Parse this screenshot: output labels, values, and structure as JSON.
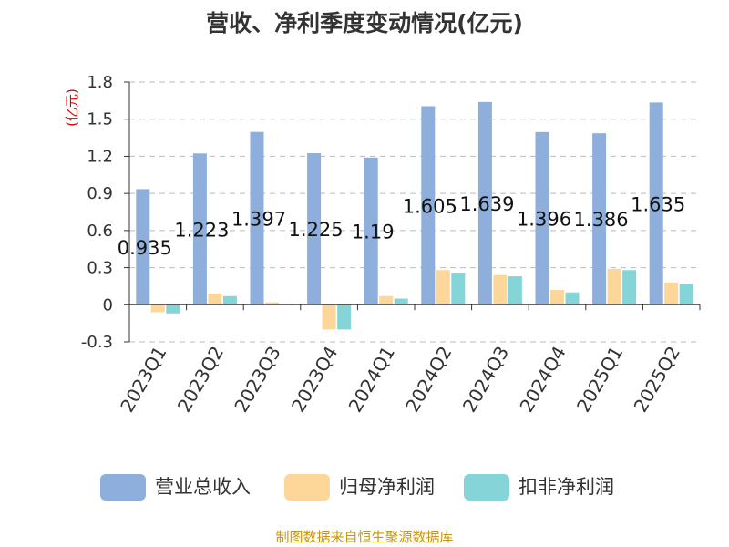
{
  "chart_data": {
    "type": "bar",
    "title": "营收、净利季度变动情况(亿元)",
    "unit_label": "(亿元)",
    "categories": [
      "2023Q1",
      "2023Q2",
      "2023Q3",
      "2023Q4",
      "2024Q1",
      "2024Q2",
      "2024Q3",
      "2024Q4",
      "2025Q1",
      "2025Q2"
    ],
    "series": [
      {
        "name": "营业总收入",
        "color": "#8eaedc",
        "values": [
          0.935,
          1.223,
          1.397,
          1.225,
          1.19,
          1.605,
          1.639,
          1.396,
          1.386,
          1.635
        ]
      },
      {
        "name": "归母净利润",
        "color": "#fdd699",
        "values": [
          -0.06,
          0.09,
          0.02,
          -0.2,
          0.07,
          0.28,
          0.24,
          0.12,
          0.29,
          0.18
        ]
      },
      {
        "name": "扣非净利润",
        "color": "#85d5d8",
        "values": [
          -0.07,
          0.07,
          0.01,
          -0.2,
          0.05,
          0.26,
          0.23,
          0.1,
          0.28,
          0.17
        ]
      }
    ],
    "data_labels": [
      "0.935",
      "1.223",
      "1.397",
      "1.225",
      "1.19",
      "1.605",
      "1.639",
      "1.396",
      "1.386",
      "1.635"
    ],
    "ylim": [
      -0.3,
      1.8
    ],
    "yticks": [
      "1.8",
      "1.5",
      "1.2",
      "0.9",
      "0.6",
      "0.3",
      "0",
      "-0.3"
    ],
    "ytick_values": [
      1.8,
      1.5,
      1.2,
      0.9,
      0.6,
      0.3,
      0,
      -0.3
    ],
    "grid": true,
    "legend_position": "bottom"
  },
  "source": "制图数据来自恒生聚源数据库"
}
